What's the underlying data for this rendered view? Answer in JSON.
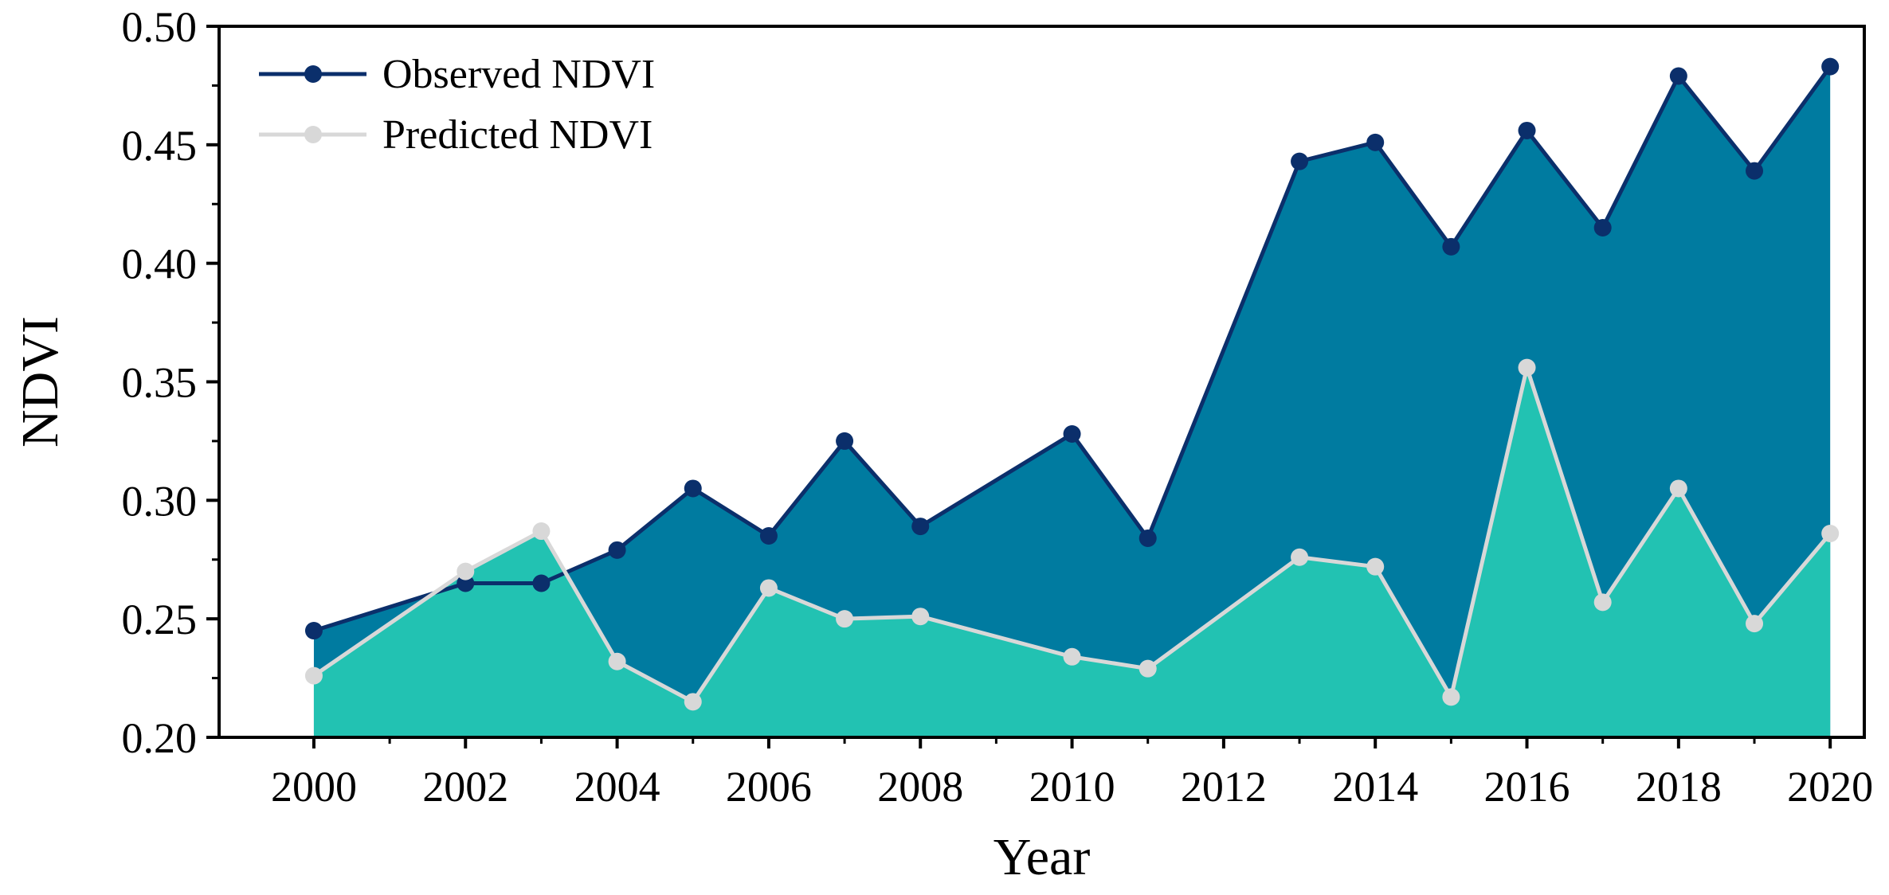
{
  "chart_data": {
    "type": "area",
    "title": "",
    "xlabel": "Year",
    "ylabel": "NDVI",
    "xlim": [
      1998.75,
      2020.45
    ],
    "ylim": [
      0.2,
      0.5
    ],
    "x_ticks": [
      2000,
      2002,
      2004,
      2006,
      2008,
      2010,
      2012,
      2014,
      2016,
      2018,
      2020
    ],
    "x_tick_labels": [
      "2000",
      "2002",
      "2004",
      "2006",
      "2008",
      "2010",
      "2012",
      "2014",
      "2016",
      "2018",
      "2020"
    ],
    "y_ticks": [
      0.2,
      0.25,
      0.3,
      0.35,
      0.4,
      0.45,
      0.5
    ],
    "y_tick_labels": [
      "0.20",
      "0.25",
      "0.30",
      "0.35",
      "0.40",
      "0.45",
      "0.50"
    ],
    "legend_position": "top-left",
    "series": [
      {
        "name": "Observed NDVI",
        "line_color": "#0b2f6b",
        "fill_color": "#007ba0",
        "x": [
          2000,
          2002,
          2003,
          2004,
          2005,
          2006,
          2007,
          2008,
          2010,
          2011,
          2013,
          2014,
          2015,
          2016,
          2017,
          2018,
          2019,
          2020
        ],
        "values": [
          0.245,
          0.265,
          0.265,
          0.279,
          0.305,
          0.285,
          0.325,
          0.289,
          0.328,
          0.284,
          0.443,
          0.451,
          0.407,
          0.456,
          0.415,
          0.479,
          0.439,
          0.483
        ]
      },
      {
        "name": "Predicted NDVI",
        "line_color": "#d8d8d8",
        "fill_color": "#22c2b2",
        "x": [
          2000,
          2002,
          2003,
          2004,
          2005,
          2006,
          2007,
          2008,
          2010,
          2011,
          2013,
          2014,
          2015,
          2016,
          2017,
          2018,
          2019,
          2020
        ],
        "values": [
          0.226,
          0.27,
          0.287,
          0.232,
          0.215,
          0.263,
          0.25,
          0.251,
          0.234,
          0.229,
          0.276,
          0.272,
          0.217,
          0.356,
          0.257,
          0.305,
          0.248,
          0.286
        ]
      }
    ]
  }
}
